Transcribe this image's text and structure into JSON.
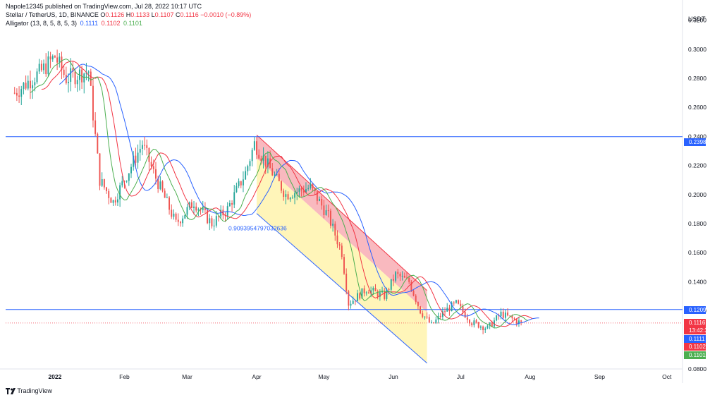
{
  "header": {
    "publish_line": "Napole12345 published on TradingView.com, Jul 28, 2022 10:17 UTC",
    "symbol": "Stellar / TetherUS, 1D, BINANCE",
    "ohlc": [
      {
        "label": "O",
        "value": "0.1126"
      },
      {
        "label": "H",
        "value": "0.1133"
      },
      {
        "label": "L",
        "value": "0.1107"
      },
      {
        "label": "C",
        "value": "0.1116"
      }
    ],
    "change": "−0.0010 (−0.89%)",
    "indicator": "Alligator (13, 8, 5, 8, 5, 3)",
    "indicator_values": [
      "0.1111",
      "0.1102",
      "0.1101"
    ]
  },
  "axis": {
    "currency": "USDT",
    "y_ticks": [
      "0.3200",
      "0.3000",
      "0.2800",
      "0.2600",
      "0.2400",
      "0.2200",
      "0.2000",
      "0.1800",
      "0.1600",
      "0.1400",
      "0.1200",
      "0.0800"
    ],
    "x_ticks": [
      "2022",
      "Feb",
      "Mar",
      "Apr",
      "May",
      "Jun",
      "Jul",
      "Aug",
      "Sep",
      "Oct"
    ]
  },
  "price_badges": {
    "h_line_upper": "0.2398",
    "h_line_lower": "0.1209",
    "last_price": "0.1116",
    "countdown": "13:42:38",
    "jaw": "0.1111",
    "teeth": "0.1102",
    "lips": "0.1101"
  },
  "annotation": {
    "fib_label": "0.9093954797032636"
  },
  "footer": {
    "brand": "TradingView"
  },
  "colors": {
    "up": "#26a69a",
    "down": "#ef5350",
    "jaw": "#2962ff",
    "teeth": "#f23645",
    "lips": "#4caf50",
    "hline": "#2962ff",
    "channel_red": "#f7a1a9",
    "channel_yellow": "#fff3a8"
  },
  "chart_data": {
    "type": "candlestick",
    "title": "Stellar / TetherUS, 1D, BINANCE",
    "ylim": [
      0.08,
      0.33
    ],
    "x_range": [
      "2021-12-10",
      "2022-10-08"
    ],
    "horizontal_lines": [
      0.2398,
      0.1209
    ],
    "ascending_chart_dates": [
      "2022-01-01",
      "2022-02-01",
      "2022-03-01",
      "2022-04-01",
      "2022-05-01",
      "2022-06-01",
      "2022-07-01",
      "2022-08-01",
      "2022-09-01",
      "2022-10-01"
    ],
    "series_keypoints": [
      {
        "date": "2021-12-14",
        "close": 0.27
      },
      {
        "date": "2021-12-26",
        "close": 0.285
      },
      {
        "date": "2022-01-01",
        "close": 0.295
      },
      {
        "date": "2022-01-06",
        "close": 0.28
      },
      {
        "date": "2022-01-16",
        "close": 0.285
      },
      {
        "date": "2022-01-21",
        "close": 0.21
      },
      {
        "date": "2022-01-27",
        "close": 0.195
      },
      {
        "date": "2022-02-09",
        "close": 0.235
      },
      {
        "date": "2022-02-14",
        "close": 0.215
      },
      {
        "date": "2022-02-24",
        "close": 0.18
      },
      {
        "date": "2022-03-04",
        "close": 0.195
      },
      {
        "date": "2022-03-12",
        "close": 0.18
      },
      {
        "date": "2022-03-19",
        "close": 0.19
      },
      {
        "date": "2022-03-27",
        "close": 0.215
      },
      {
        "date": "2022-03-31",
        "close": 0.235
      },
      {
        "date": "2022-04-08",
        "close": 0.215
      },
      {
        "date": "2022-04-14",
        "close": 0.2
      },
      {
        "date": "2022-04-25",
        "close": 0.205
      },
      {
        "date": "2022-05-03",
        "close": 0.185
      },
      {
        "date": "2022-05-09",
        "close": 0.16
      },
      {
        "date": "2022-05-12",
        "close": 0.125
      },
      {
        "date": "2022-05-20",
        "close": 0.135
      },
      {
        "date": "2022-05-28",
        "close": 0.13
      },
      {
        "date": "2022-06-02",
        "close": 0.145
      },
      {
        "date": "2022-06-08",
        "close": 0.14
      },
      {
        "date": "2022-06-13",
        "close": 0.12
      },
      {
        "date": "2022-06-18",
        "close": 0.11
      },
      {
        "date": "2022-06-24",
        "close": 0.12
      },
      {
        "date": "2022-06-29",
        "close": 0.125
      },
      {
        "date": "2022-07-06",
        "close": 0.112
      },
      {
        "date": "2022-07-13",
        "close": 0.108
      },
      {
        "date": "2022-07-19",
        "close": 0.118
      },
      {
        "date": "2022-07-28",
        "close": 0.1116
      }
    ],
    "fib_channel": {
      "top_start": {
        "date": "2022-04-01",
        "price": 0.241
      },
      "top_end": {
        "date": "2022-06-16",
        "price": 0.134
      },
      "mid_start": {
        "date": "2022-04-01",
        "price": 0.225
      },
      "mid_end": {
        "date": "2022-06-16",
        "price": 0.119
      },
      "bottom_start": {
        "date": "2022-04-01",
        "price": 0.187
      },
      "bottom_end": {
        "date": "2022-06-16",
        "price": 0.084
      }
    }
  }
}
